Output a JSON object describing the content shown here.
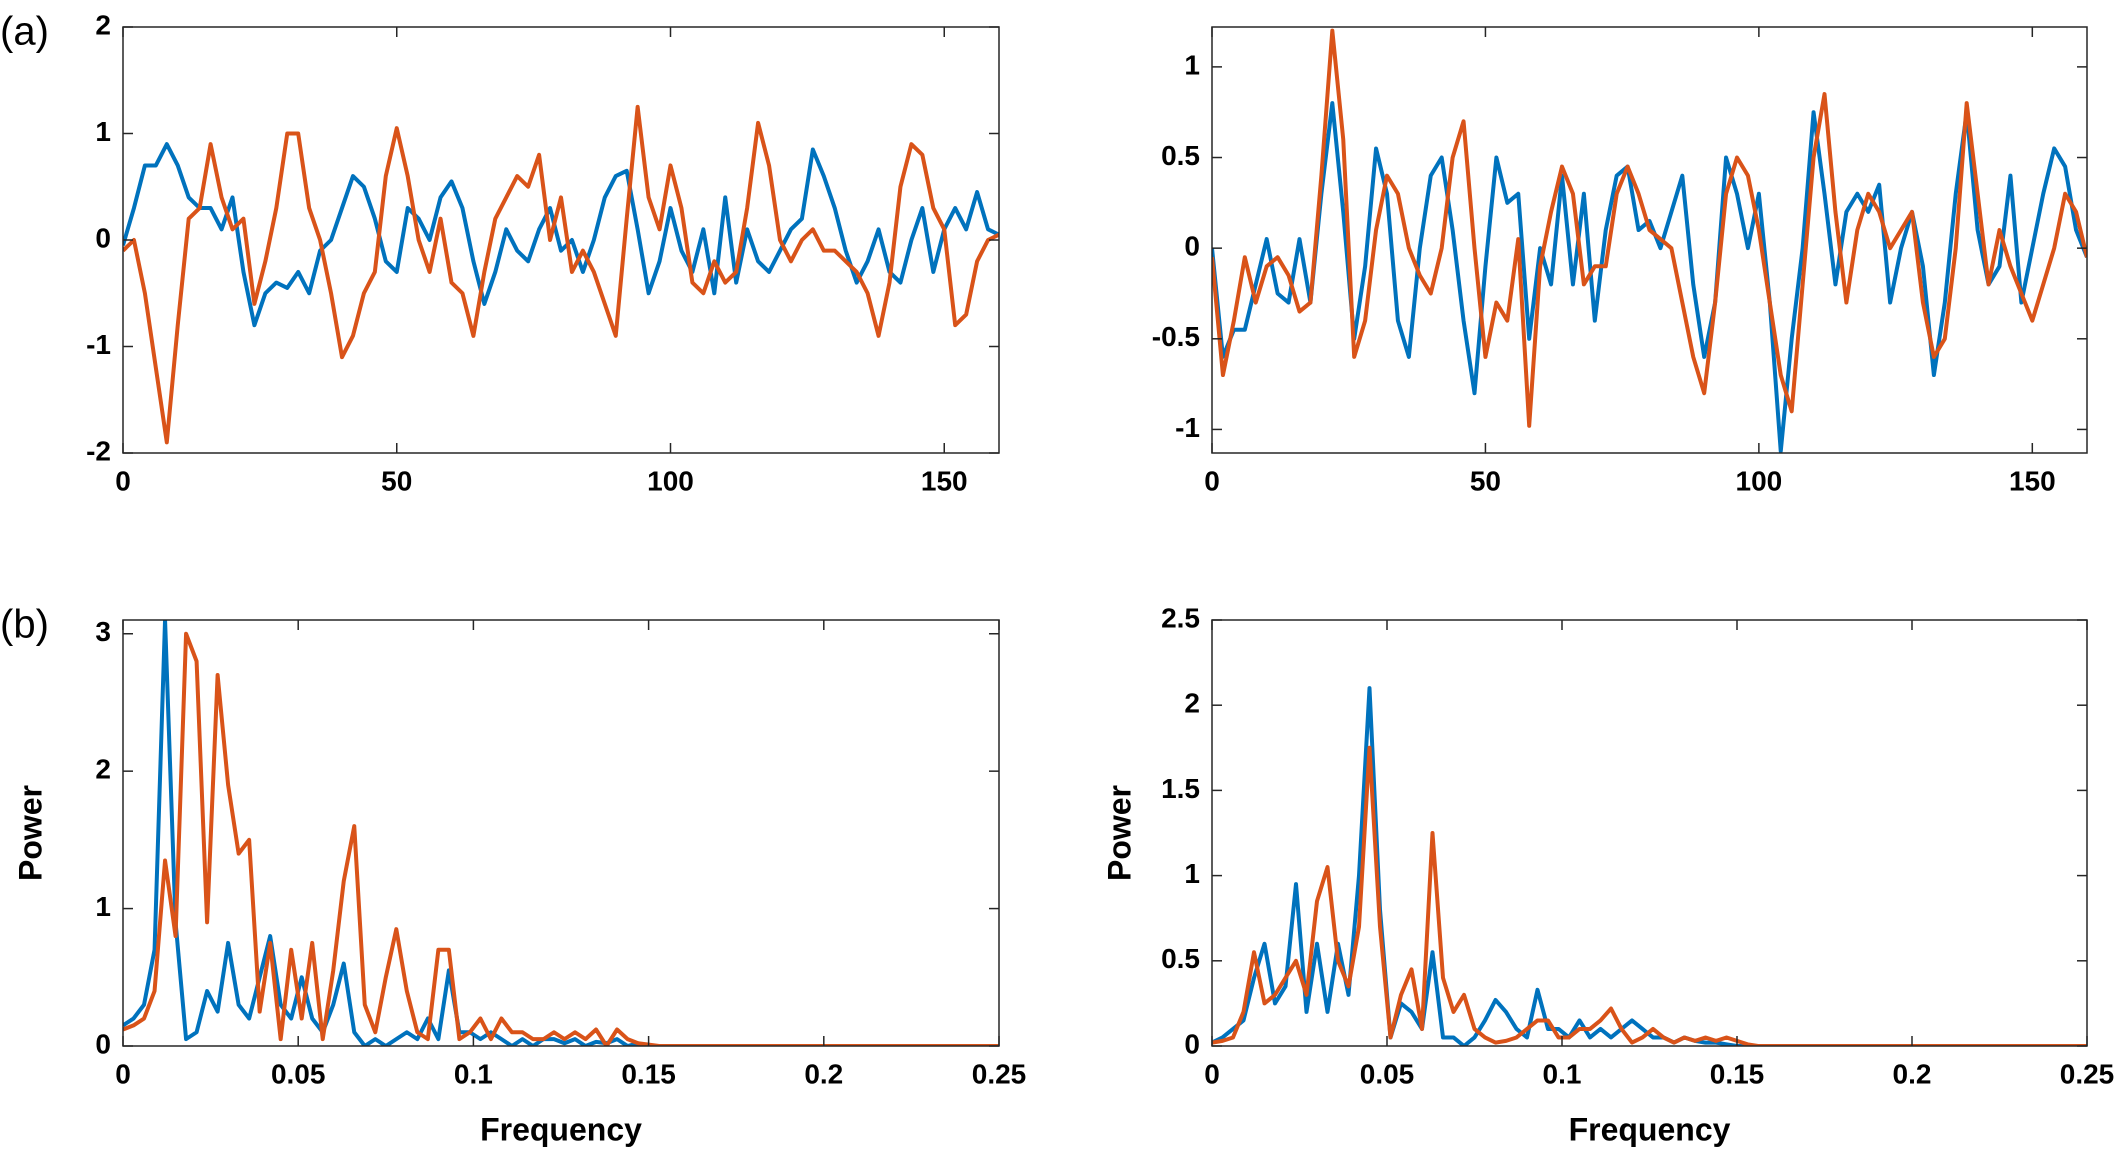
{
  "panel_labels": [
    "(a)",
    "(b)"
  ],
  "chart_data": [
    {
      "type": "line",
      "x": [
        0,
        2,
        4,
        6,
        8,
        10,
        12,
        14,
        16,
        18,
        20,
        22,
        24,
        26,
        28,
        30,
        32,
        34,
        36,
        38,
        40,
        42,
        44,
        46,
        48,
        50,
        52,
        54,
        56,
        58,
        60,
        62,
        64,
        66,
        68,
        70,
        72,
        74,
        76,
        78,
        80,
        82,
        84,
        86,
        88,
        90,
        92,
        94,
        96,
        98,
        100,
        102,
        104,
        106,
        108,
        110,
        112,
        114,
        116,
        118,
        120,
        122,
        124,
        126,
        128,
        130,
        132,
        134,
        136,
        138,
        140,
        142,
        144,
        146,
        148,
        150,
        152,
        154,
        156,
        158,
        160
      ],
      "xlim": [
        0,
        160
      ],
      "xticks": [
        0,
        50,
        100,
        150
      ],
      "ylim": [
        -2,
        2
      ],
      "yticks": [
        -2,
        -1,
        0,
        1,
        2
      ],
      "series": [
        {
          "color": "#0072bd",
          "values": [
            -0.05,
            0.3,
            0.7,
            0.7,
            0.9,
            0.7,
            0.4,
            0.3,
            0.3,
            0.1,
            0.4,
            -0.3,
            -0.8,
            -0.5,
            -0.4,
            -0.45,
            -0.3,
            -0.5,
            -0.1,
            0.0,
            0.3,
            0.6,
            0.5,
            0.2,
            -0.2,
            -0.3,
            0.3,
            0.2,
            0.0,
            0.4,
            0.55,
            0.3,
            -0.2,
            -0.6,
            -0.3,
            0.1,
            -0.1,
            -0.2,
            0.1,
            0.3,
            -0.1,
            0.0,
            -0.3,
            0.0,
            0.4,
            0.6,
            0.65,
            0.1,
            -0.5,
            -0.2,
            0.3,
            -0.1,
            -0.3,
            0.1,
            -0.5,
            0.4,
            -0.4,
            0.1,
            -0.2,
            -0.3,
            -0.1,
            0.1,
            0.2,
            0.85,
            0.6,
            0.3,
            -0.1,
            -0.4,
            -0.2,
            0.1,
            -0.3,
            -0.4,
            0.0,
            0.3,
            -0.3,
            0.1,
            0.3,
            0.1,
            0.45,
            0.1,
            0.05
          ]
        },
        {
          "color": "#d95319",
          "values": [
            -0.1,
            0.0,
            -0.5,
            -1.2,
            -1.9,
            -0.8,
            0.2,
            0.3,
            0.9,
            0.4,
            0.1,
            0.2,
            -0.6,
            -0.2,
            0.3,
            1.0,
            1.0,
            0.3,
            0.0,
            -0.5,
            -1.1,
            -0.9,
            -0.5,
            -0.3,
            0.6,
            1.05,
            0.6,
            0.0,
            -0.3,
            0.2,
            -0.4,
            -0.5,
            -0.9,
            -0.3,
            0.2,
            0.4,
            0.6,
            0.5,
            0.8,
            0.0,
            0.4,
            -0.3,
            -0.1,
            -0.3,
            -0.6,
            -0.9,
            0.2,
            1.25,
            0.4,
            0.1,
            0.7,
            0.3,
            -0.4,
            -0.5,
            -0.2,
            -0.4,
            -0.3,
            0.3,
            1.1,
            0.7,
            0.0,
            -0.2,
            0.0,
            0.1,
            -0.1,
            -0.1,
            -0.2,
            -0.3,
            -0.5,
            -0.9,
            -0.4,
            0.5,
            0.9,
            0.8,
            0.3,
            0.1,
            -0.8,
            -0.7,
            -0.2,
            0.0,
            0.05
          ]
        }
      ]
    },
    {
      "type": "line",
      "x": [
        0,
        2,
        4,
        6,
        8,
        10,
        12,
        14,
        16,
        18,
        20,
        22,
        24,
        26,
        28,
        30,
        32,
        34,
        36,
        38,
        40,
        42,
        44,
        46,
        48,
        50,
        52,
        54,
        56,
        58,
        60,
        62,
        64,
        66,
        68,
        70,
        72,
        74,
        76,
        78,
        80,
        82,
        84,
        86,
        88,
        90,
        92,
        94,
        96,
        98,
        100,
        102,
        104,
        106,
        108,
        110,
        112,
        114,
        116,
        118,
        120,
        122,
        124,
        126,
        128,
        130,
        132,
        134,
        136,
        138,
        140,
        142,
        144,
        146,
        148,
        150,
        152,
        154,
        156,
        158,
        160
      ],
      "xlim": [
        0,
        160
      ],
      "xticks": [
        0,
        50,
        100,
        150
      ],
      "ylim": [
        -1.13,
        1.22
      ],
      "yticks": [
        -1,
        -0.5,
        0,
        0.5,
        1
      ],
      "series": [
        {
          "color": "#0072bd",
          "values": [
            0.0,
            -0.6,
            -0.45,
            -0.45,
            -0.2,
            0.05,
            -0.25,
            -0.3,
            0.05,
            -0.3,
            0.3,
            0.8,
            0.2,
            -0.5,
            -0.1,
            0.55,
            0.3,
            -0.4,
            -0.6,
            0.0,
            0.4,
            0.5,
            0.1,
            -0.4,
            -0.8,
            -0.1,
            0.5,
            0.25,
            0.3,
            -0.5,
            0.0,
            -0.2,
            0.4,
            -0.2,
            0.3,
            -0.4,
            0.1,
            0.4,
            0.45,
            0.1,
            0.15,
            0.0,
            0.2,
            0.4,
            -0.2,
            -0.6,
            -0.3,
            0.5,
            0.3,
            0.0,
            0.3,
            -0.3,
            -1.12,
            -0.5,
            0.0,
            0.75,
            0.3,
            -0.2,
            0.2,
            0.3,
            0.2,
            0.35,
            -0.3,
            0.0,
            0.2,
            -0.1,
            -0.7,
            -0.3,
            0.3,
            0.75,
            0.1,
            -0.2,
            -0.1,
            0.4,
            -0.3,
            0.0,
            0.3,
            0.55,
            0.45,
            0.1,
            -0.05
          ]
        },
        {
          "color": "#d95319",
          "values": [
            -0.05,
            -0.7,
            -0.4,
            -0.05,
            -0.3,
            -0.1,
            -0.05,
            -0.15,
            -0.35,
            -0.3,
            0.4,
            1.2,
            0.6,
            -0.6,
            -0.4,
            0.1,
            0.4,
            0.3,
            0.0,
            -0.15,
            -0.25,
            0.0,
            0.5,
            0.7,
            0.0,
            -0.6,
            -0.3,
            -0.4,
            0.05,
            -0.98,
            -0.1,
            0.2,
            0.45,
            0.3,
            -0.2,
            -0.1,
            -0.1,
            0.3,
            0.45,
            0.3,
            0.1,
            0.05,
            0.0,
            -0.3,
            -0.6,
            -0.8,
            -0.3,
            0.3,
            0.5,
            0.4,
            0.1,
            -0.3,
            -0.7,
            -0.9,
            -0.2,
            0.5,
            0.85,
            0.2,
            -0.3,
            0.1,
            0.3,
            0.2,
            0.0,
            0.1,
            0.2,
            -0.3,
            -0.6,
            -0.5,
            0.0,
            0.8,
            0.3,
            -0.2,
            0.1,
            -0.1,
            -0.25,
            -0.4,
            -0.2,
            0.0,
            0.3,
            0.2,
            -0.05
          ]
        }
      ]
    },
    {
      "type": "line",
      "xlabel": "Frequency",
      "ylabel": "Power",
      "x": [
        0,
        0.003,
        0.006,
        0.009,
        0.012,
        0.015,
        0.018,
        0.021,
        0.024,
        0.027,
        0.03,
        0.033,
        0.036,
        0.039,
        0.042,
        0.045,
        0.048,
        0.051,
        0.054,
        0.057,
        0.06,
        0.063,
        0.066,
        0.069,
        0.072,
        0.075,
        0.078,
        0.081,
        0.084,
        0.087,
        0.09,
        0.093,
        0.096,
        0.099,
        0.102,
        0.105,
        0.108,
        0.111,
        0.114,
        0.117,
        0.12,
        0.123,
        0.126,
        0.129,
        0.132,
        0.135,
        0.138,
        0.141,
        0.144,
        0.147,
        0.15,
        0.153,
        0.156,
        0.159,
        0.25
      ],
      "xlim": [
        0,
        0.25
      ],
      "xticks": [
        0,
        0.05,
        0.1,
        0.15,
        0.2,
        0.25
      ],
      "ylim": [
        0,
        3.1
      ],
      "yticks": [
        0,
        1,
        2,
        3
      ],
      "series": [
        {
          "color": "#0072bd",
          "values": [
            0.15,
            0.2,
            0.3,
            0.7,
            3.1,
            0.9,
            0.05,
            0.1,
            0.4,
            0.25,
            0.75,
            0.3,
            0.2,
            0.5,
            0.8,
            0.3,
            0.2,
            0.5,
            0.2,
            0.1,
            0.3,
            0.6,
            0.1,
            0,
            0.05,
            0,
            0.05,
            0.1,
            0.05,
            0.2,
            0.05,
            0.55,
            0.1,
            0.1,
            0.05,
            0.1,
            0.05,
            0,
            0.05,
            0,
            0.05,
            0.05,
            0.02,
            0.05,
            0,
            0.03,
            0.02,
            0.05,
            0,
            0.02,
            0,
            0,
            0,
            0,
            0
          ]
        },
        {
          "color": "#d95319",
          "values": [
            0.12,
            0.15,
            0.2,
            0.4,
            1.35,
            0.8,
            3.0,
            2.8,
            0.9,
            2.7,
            1.9,
            1.4,
            1.5,
            0.25,
            0.75,
            0.05,
            0.7,
            0.2,
            0.75,
            0.05,
            0.55,
            1.2,
            1.6,
            0.3,
            0.1,
            0.5,
            0.85,
            0.4,
            0.1,
            0.05,
            0.7,
            0.7,
            0.05,
            0.1,
            0.2,
            0.05,
            0.2,
            0.1,
            0.1,
            0.05,
            0.05,
            0.1,
            0.05,
            0.1,
            0.05,
            0.12,
            0,
            0.12,
            0.05,
            0.02,
            0.01,
            0,
            0,
            0,
            0
          ]
        }
      ]
    },
    {
      "type": "line",
      "xlabel": "Frequency",
      "ylabel": "Power",
      "x": [
        0,
        0.003,
        0.006,
        0.009,
        0.012,
        0.015,
        0.018,
        0.021,
        0.024,
        0.027,
        0.03,
        0.033,
        0.036,
        0.039,
        0.042,
        0.045,
        0.048,
        0.051,
        0.054,
        0.057,
        0.06,
        0.063,
        0.066,
        0.069,
        0.072,
        0.075,
        0.078,
        0.081,
        0.084,
        0.087,
        0.09,
        0.093,
        0.096,
        0.099,
        0.102,
        0.105,
        0.108,
        0.111,
        0.114,
        0.117,
        0.12,
        0.123,
        0.126,
        0.129,
        0.132,
        0.135,
        0.138,
        0.141,
        0.144,
        0.147,
        0.15,
        0.153,
        0.156,
        0.159,
        0.25
      ],
      "xlim": [
        0,
        0.25
      ],
      "xticks": [
        0,
        0.05,
        0.1,
        0.15,
        0.2,
        0.25
      ],
      "ylim": [
        0,
        2.5
      ],
      "yticks": [
        0,
        0.5,
        1,
        1.5,
        2,
        2.5
      ],
      "series": [
        {
          "color": "#0072bd",
          "values": [
            0.02,
            0.05,
            0.1,
            0.15,
            0.4,
            0.6,
            0.25,
            0.35,
            0.95,
            0.2,
            0.6,
            0.2,
            0.6,
            0.3,
            1.0,
            2.1,
            0.8,
            0.05,
            0.25,
            0.2,
            0.1,
            0.55,
            0.05,
            0.05,
            0,
            0.05,
            0.15,
            0.27,
            0.2,
            0.1,
            0.05,
            0.33,
            0.1,
            0.1,
            0.05,
            0.15,
            0.05,
            0.1,
            0.05,
            0.1,
            0.15,
            0.1,
            0.05,
            0.05,
            0.02,
            0.05,
            0.03,
            0.02,
            0.02,
            0.01,
            0,
            0,
            0,
            0,
            0
          ]
        },
        {
          "color": "#d95319",
          "values": [
            0.02,
            0.03,
            0.05,
            0.2,
            0.55,
            0.25,
            0.3,
            0.4,
            0.5,
            0.3,
            0.85,
            1.05,
            0.5,
            0.35,
            0.7,
            1.75,
            0.7,
            0.05,
            0.3,
            0.45,
            0.1,
            1.25,
            0.4,
            0.2,
            0.3,
            0.1,
            0.05,
            0.02,
            0.03,
            0.05,
            0.1,
            0.15,
            0.15,
            0.05,
            0.05,
            0.1,
            0.1,
            0.15,
            0.22,
            0.1,
            0.02,
            0.05,
            0.1,
            0.05,
            0.02,
            0.05,
            0.03,
            0.05,
            0.03,
            0.05,
            0.03,
            0.01,
            0,
            0,
            0
          ]
        }
      ]
    }
  ]
}
